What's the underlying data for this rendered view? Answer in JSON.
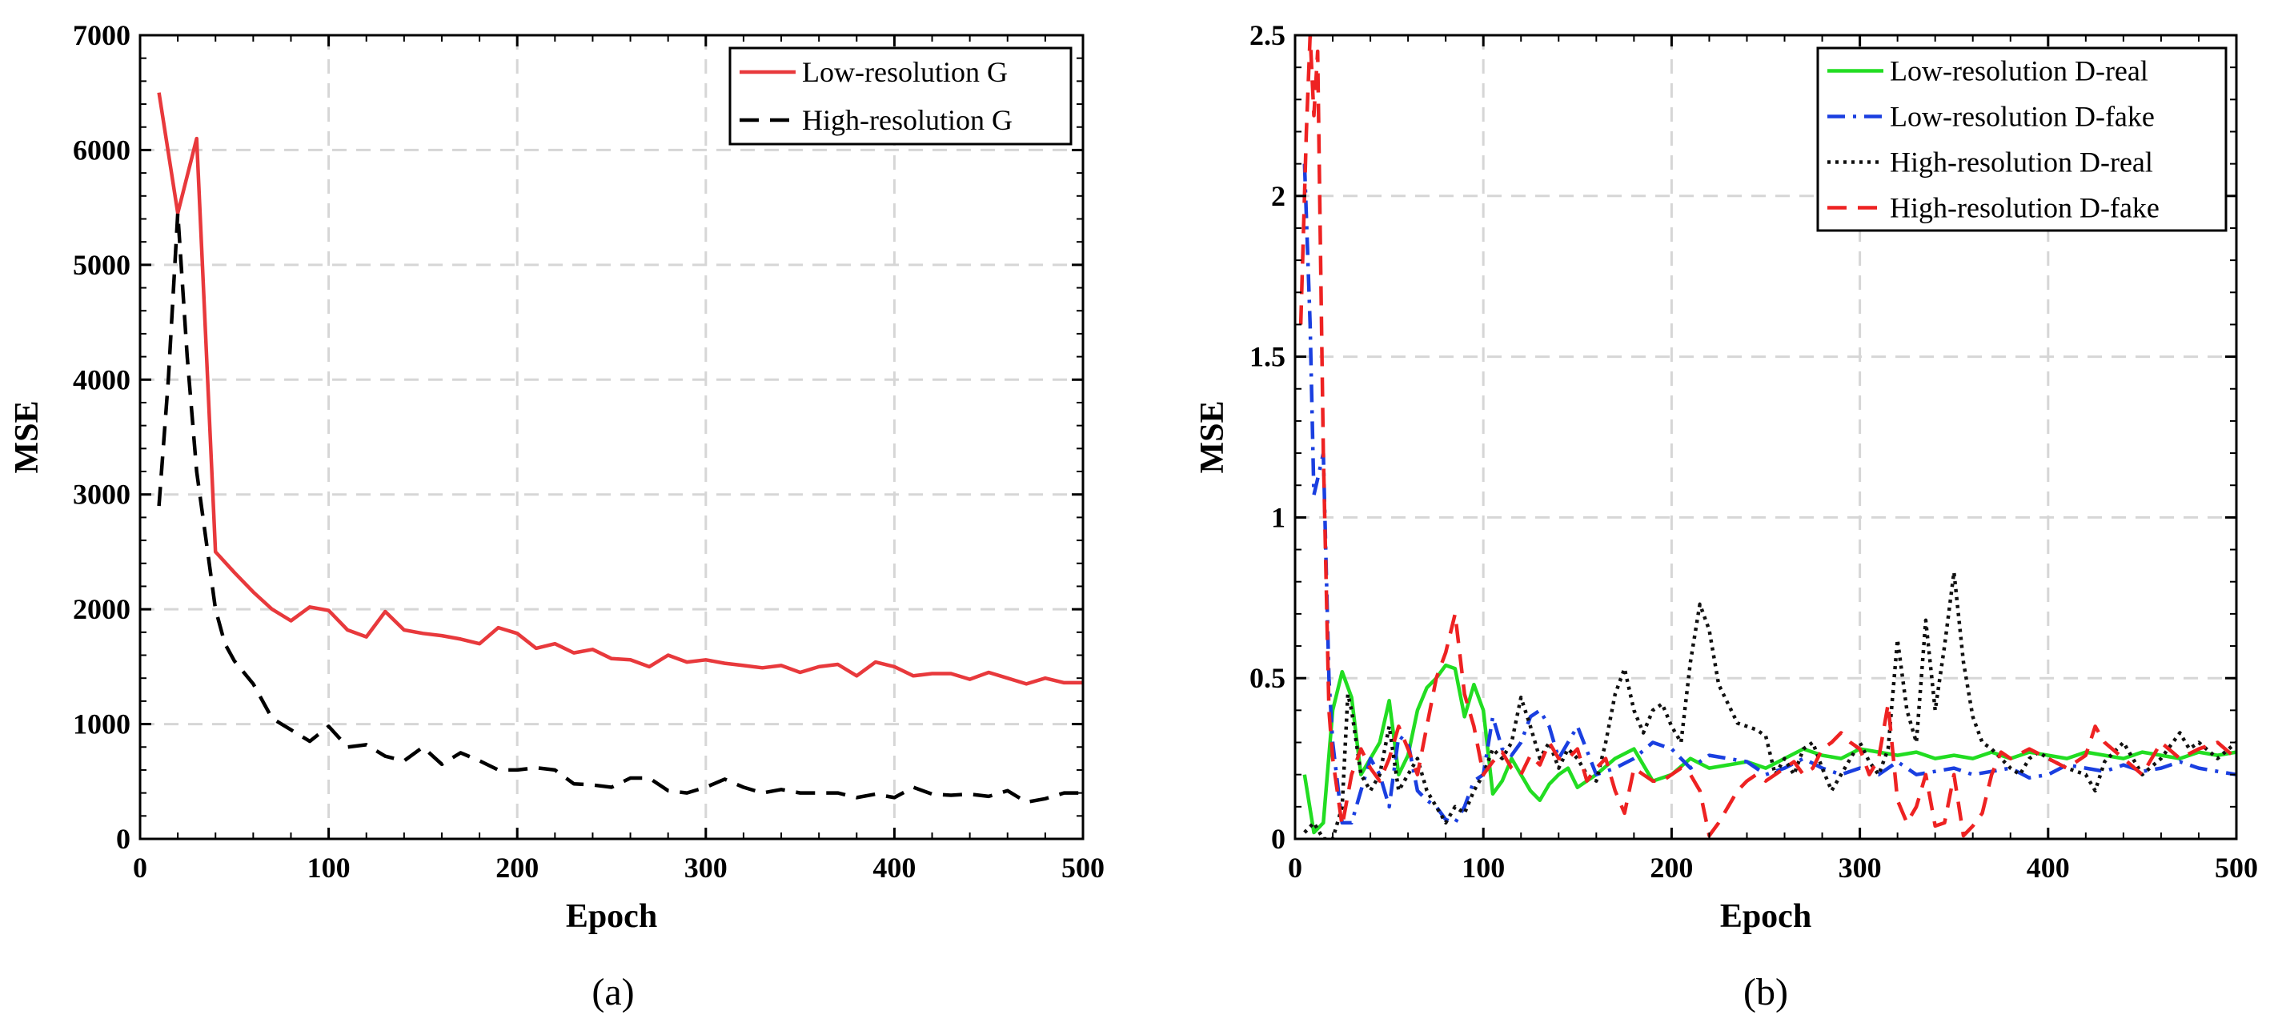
{
  "figure": {
    "panels": [
      "(a)",
      "(b)"
    ]
  },
  "chart_data": [
    {
      "type": "line",
      "panel": "(a)",
      "xlabel": "Epoch",
      "ylabel": "MSE",
      "xlim": [
        0,
        500
      ],
      "ylim": [
        0,
        7000
      ],
      "xticks": [
        0,
        100,
        200,
        300,
        400,
        500
      ],
      "yticks": [
        0,
        1000,
        2000,
        3000,
        4000,
        5000,
        6000,
        7000
      ],
      "grid": true,
      "legend_position": "top-right",
      "series": [
        {
          "name": "Low-resolution G",
          "color": "#e8393c",
          "style": "solid",
          "x": [
            10,
            20,
            30,
            40,
            50,
            60,
            70,
            80,
            90,
            100,
            110,
            120,
            130,
            140,
            150,
            160,
            170,
            180,
            190,
            200,
            210,
            220,
            230,
            240,
            250,
            260,
            270,
            280,
            290,
            300,
            310,
            320,
            330,
            340,
            350,
            360,
            370,
            380,
            390,
            400,
            410,
            420,
            430,
            440,
            450,
            460,
            470,
            480,
            490,
            500
          ],
          "y": [
            6500,
            5450,
            6100,
            2500,
            2320,
            2150,
            2000,
            1900,
            2020,
            1990,
            1820,
            1760,
            1980,
            1820,
            1790,
            1770,
            1740,
            1700,
            1840,
            1790,
            1660,
            1700,
            1620,
            1650,
            1570,
            1560,
            1500,
            1600,
            1540,
            1560,
            1530,
            1510,
            1490,
            1510,
            1450,
            1500,
            1520,
            1420,
            1540,
            1500,
            1420,
            1440,
            1440,
            1390,
            1450,
            1400,
            1350,
            1400,
            1360,
            1360
          ]
        },
        {
          "name": "High-resolution G",
          "color": "#000000",
          "style": "dashed",
          "x": [
            10,
            15,
            20,
            25,
            30,
            35,
            40,
            45,
            50,
            60,
            70,
            80,
            90,
            100,
            110,
            120,
            130,
            140,
            150,
            160,
            170,
            180,
            190,
            200,
            210,
            220,
            230,
            240,
            250,
            260,
            270,
            280,
            290,
            300,
            310,
            320,
            330,
            340,
            350,
            360,
            370,
            380,
            390,
            400,
            410,
            420,
            430,
            440,
            450,
            460,
            470,
            480,
            490,
            500
          ],
          "y": [
            2900,
            4000,
            5450,
            4200,
            3200,
            2600,
            2000,
            1700,
            1550,
            1350,
            1050,
            950,
            850,
            980,
            800,
            820,
            720,
            680,
            800,
            650,
            750,
            680,
            600,
            600,
            620,
            600,
            480,
            470,
            450,
            530,
            530,
            420,
            400,
            450,
            520,
            450,
            400,
            430,
            400,
            400,
            400,
            360,
            390,
            360,
            450,
            390,
            380,
            390,
            370,
            420,
            320,
            350,
            400,
            400
          ]
        }
      ]
    },
    {
      "type": "line",
      "panel": "(b)",
      "xlabel": "Epoch",
      "ylabel": "MSE",
      "xlim": [
        0,
        500
      ],
      "ylim": [
        0,
        2.5
      ],
      "xticks": [
        0,
        100,
        200,
        300,
        400,
        500
      ],
      "yticks": [
        0,
        0.5,
        1,
        1.5,
        2,
        2.5
      ],
      "ytick_labels": [
        "0",
        "0.5",
        "1",
        "1.5",
        "2",
        "2.5"
      ],
      "grid": true,
      "legend_position": "top-right",
      "series": [
        {
          "name": "Low-resolution D-real",
          "color": "#22dd22",
          "style": "solid",
          "x": [
            5,
            10,
            15,
            20,
            25,
            30,
            35,
            40,
            45,
            50,
            55,
            60,
            65,
            70,
            75,
            80,
            85,
            90,
            95,
            100,
            105,
            110,
            115,
            120,
            125,
            130,
            135,
            140,
            145,
            150,
            160,
            170,
            180,
            190,
            200,
            210,
            220,
            230,
            240,
            250,
            260,
            270,
            280,
            290,
            300,
            310,
            320,
            330,
            340,
            350,
            360,
            370,
            380,
            390,
            400,
            410,
            420,
            430,
            440,
            450,
            460,
            470,
            480,
            490,
            500
          ],
          "y": [
            0.2,
            0.02,
            0.05,
            0.4,
            0.52,
            0.44,
            0.2,
            0.25,
            0.3,
            0.43,
            0.2,
            0.26,
            0.4,
            0.47,
            0.5,
            0.54,
            0.53,
            0.38,
            0.48,
            0.4,
            0.14,
            0.18,
            0.25,
            0.2,
            0.15,
            0.12,
            0.17,
            0.2,
            0.22,
            0.16,
            0.2,
            0.25,
            0.28,
            0.18,
            0.2,
            0.25,
            0.22,
            0.23,
            0.24,
            0.22,
            0.25,
            0.28,
            0.26,
            0.25,
            0.28,
            0.27,
            0.26,
            0.27,
            0.25,
            0.26,
            0.25,
            0.27,
            0.25,
            0.27,
            0.26,
            0.25,
            0.27,
            0.26,
            0.25,
            0.27,
            0.26,
            0.25,
            0.27,
            0.26,
            0.27
          ]
        },
        {
          "name": "Low-resolution D-fake",
          "color": "#1a3fe0",
          "style": "dashdot",
          "x": [
            5,
            8,
            10,
            12,
            15,
            18,
            20,
            25,
            30,
            35,
            40,
            45,
            50,
            55,
            60,
            65,
            70,
            75,
            80,
            85,
            90,
            95,
            100,
            105,
            110,
            115,
            120,
            125,
            130,
            135,
            140,
            145,
            150,
            160,
            170,
            180,
            190,
            200,
            210,
            220,
            230,
            240,
            250,
            260,
            270,
            280,
            290,
            300,
            310,
            320,
            330,
            340,
            350,
            360,
            370,
            380,
            390,
            400,
            410,
            420,
            430,
            440,
            450,
            460,
            470,
            480,
            490,
            500
          ],
          "y": [
            2.1,
            1.6,
            1.07,
            1.12,
            1.2,
            0.5,
            0.3,
            0.05,
            0.05,
            0.15,
            0.25,
            0.2,
            0.1,
            0.32,
            0.3,
            0.15,
            0.12,
            0.1,
            0.06,
            0.05,
            0.1,
            0.18,
            0.2,
            0.38,
            0.28,
            0.26,
            0.3,
            0.38,
            0.4,
            0.35,
            0.25,
            0.3,
            0.35,
            0.2,
            0.22,
            0.25,
            0.3,
            0.28,
            0.22,
            0.26,
            0.25,
            0.24,
            0.2,
            0.22,
            0.25,
            0.22,
            0.2,
            0.22,
            0.2,
            0.24,
            0.2,
            0.21,
            0.22,
            0.2,
            0.21,
            0.22,
            0.19,
            0.2,
            0.23,
            0.22,
            0.21,
            0.23,
            0.21,
            0.22,
            0.24,
            0.22,
            0.21,
            0.2
          ]
        },
        {
          "name": "High-resolution D-real",
          "color": "#111111",
          "style": "dotted",
          "x": [
            5,
            10,
            15,
            20,
            25,
            28,
            30,
            35,
            40,
            45,
            50,
            55,
            60,
            65,
            70,
            75,
            80,
            85,
            90,
            95,
            100,
            105,
            110,
            115,
            120,
            125,
            130,
            135,
            140,
            145,
            150,
            155,
            160,
            165,
            170,
            175,
            180,
            185,
            190,
            195,
            200,
            205,
            210,
            215,
            220,
            225,
            230,
            235,
            240,
            245,
            250,
            255,
            260,
            265,
            270,
            275,
            280,
            285,
            290,
            295,
            300,
            305,
            310,
            315,
            320,
            325,
            330,
            335,
            340,
            345,
            350,
            355,
            360,
            365,
            370,
            375,
            380,
            385,
            390,
            395,
            400,
            410,
            420,
            425,
            430,
            440,
            450,
            460,
            470,
            475,
            480,
            490,
            500
          ],
          "y": [
            0.02,
            0.05,
            0.0,
            0.0,
            0.1,
            0.45,
            0.4,
            0.2,
            0.15,
            0.2,
            0.35,
            0.15,
            0.2,
            0.25,
            0.15,
            0.1,
            0.05,
            0.1,
            0.08,
            0.15,
            0.2,
            0.28,
            0.25,
            0.3,
            0.44,
            0.35,
            0.25,
            0.3,
            0.22,
            0.28,
            0.25,
            0.2,
            0.18,
            0.3,
            0.45,
            0.53,
            0.4,
            0.33,
            0.4,
            0.42,
            0.35,
            0.3,
            0.55,
            0.73,
            0.65,
            0.48,
            0.42,
            0.36,
            0.35,
            0.34,
            0.32,
            0.2,
            0.25,
            0.2,
            0.28,
            0.3,
            0.22,
            0.15,
            0.2,
            0.25,
            0.3,
            0.24,
            0.2,
            0.28,
            0.62,
            0.4,
            0.3,
            0.68,
            0.4,
            0.6,
            0.83,
            0.55,
            0.38,
            0.3,
            0.28,
            0.25,
            0.22,
            0.2,
            0.25,
            0.27,
            0.25,
            0.22,
            0.2,
            0.15,
            0.24,
            0.3,
            0.2,
            0.25,
            0.33,
            0.28,
            0.3,
            0.25,
            0.3
          ]
        },
        {
          "name": "High-resolution D-fake",
          "color": "#ee2222",
          "style": "dashed",
          "x": [
            3,
            6,
            8,
            10,
            12,
            15,
            18,
            20,
            25,
            30,
            35,
            40,
            45,
            50,
            55,
            60,
            65,
            70,
            75,
            80,
            85,
            90,
            95,
            100,
            105,
            110,
            115,
            120,
            125,
            130,
            135,
            140,
            145,
            150,
            155,
            160,
            165,
            170,
            175,
            180,
            185,
            190,
            195,
            200,
            205,
            210,
            215,
            220,
            225,
            230,
            235,
            240,
            245,
            250,
            255,
            260,
            265,
            270,
            275,
            280,
            285,
            290,
            295,
            300,
            305,
            310,
            315,
            320,
            325,
            330,
            335,
            340,
            345,
            350,
            355,
            360,
            365,
            370,
            375,
            380,
            390,
            400,
            410,
            420,
            425,
            430,
            440,
            450,
            460,
            470,
            480,
            490,
            500
          ],
          "y": [
            1.6,
            2.2,
            2.5,
            2.25,
            2.45,
            1.2,
            0.4,
            0.25,
            0.04,
            0.2,
            0.28,
            0.22,
            0.18,
            0.25,
            0.35,
            0.28,
            0.2,
            0.35,
            0.5,
            0.58,
            0.7,
            0.45,
            0.35,
            0.2,
            0.24,
            0.27,
            0.22,
            0.2,
            0.26,
            0.23,
            0.3,
            0.25,
            0.25,
            0.28,
            0.18,
            0.22,
            0.25,
            0.15,
            0.08,
            0.22,
            0.2,
            0.18,
            0.18,
            0.2,
            0.22,
            0.2,
            0.15,
            0.01,
            0.05,
            0.1,
            0.15,
            0.18,
            0.2,
            0.18,
            0.2,
            0.22,
            0.24,
            0.2,
            0.22,
            0.28,
            0.3,
            0.33,
            0.3,
            0.28,
            0.2,
            0.25,
            0.42,
            0.12,
            0.05,
            0.1,
            0.2,
            0.04,
            0.05,
            0.2,
            0.01,
            0.04,
            0.08,
            0.2,
            0.27,
            0.25,
            0.28,
            0.25,
            0.22,
            0.26,
            0.35,
            0.3,
            0.25,
            0.2,
            0.3,
            0.25,
            0.28,
            0.3,
            0.25
          ]
        }
      ]
    }
  ]
}
